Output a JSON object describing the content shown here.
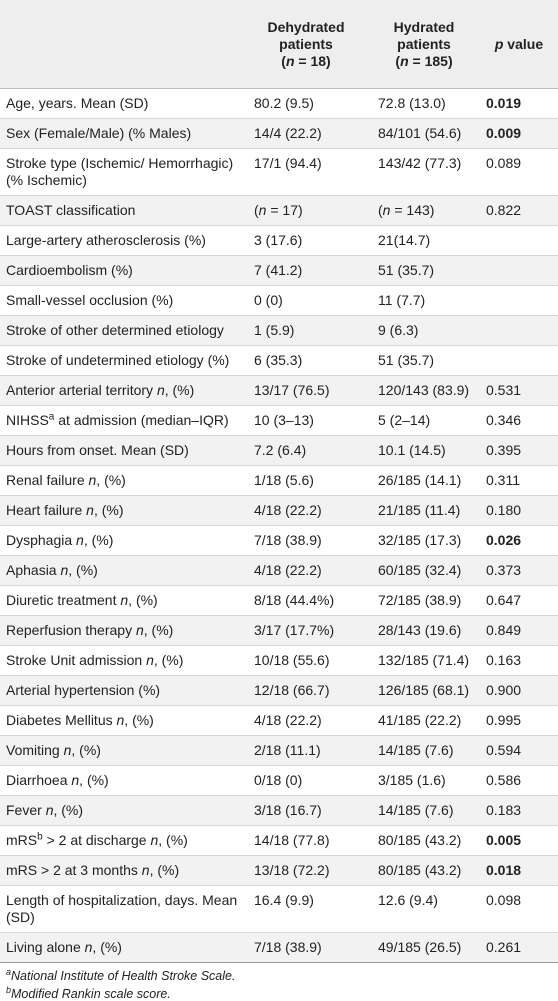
{
  "header": {
    "col1": "",
    "col2_line1": "Dehydrated",
    "col2_line2": "patients",
    "col2_n": "(n = 18)",
    "col3_line1": "Hydrated",
    "col3_line2": "patients",
    "col3_n": "(n = 185)",
    "col4": "p value"
  },
  "rows": [
    {
      "label": "Age, years. Mean (SD)",
      "dehydrated": "80.2 (9.5)",
      "hydrated": "72.8 (13.0)",
      "p": "0.019",
      "bold": true
    },
    {
      "label": "Sex (Female/Male) (% Males)",
      "dehydrated": "14/4 (22.2)",
      "hydrated": "84/101 (54.6)",
      "p": "0.009",
      "bold": true
    },
    {
      "label": "Stroke type (Ischemic/ Hemorrhagic) (% Ischemic)",
      "dehydrated": "17/1 (94.4)",
      "hydrated": "143/42 (77.3)",
      "p": "0.089",
      "bold": false
    },
    {
      "label": "TOAST classification",
      "dehydrated": "(n = 17)",
      "hydrated": "(n = 143)",
      "p": "0.822",
      "bold": false
    },
    {
      "label": "Large-artery atherosclerosis (%)",
      "dehydrated": "3 (17.6)",
      "hydrated": "21(14.7)",
      "p": "",
      "bold": false
    },
    {
      "label": "Cardioembolism (%)",
      "dehydrated": "7 (41.2)",
      "hydrated": "51 (35.7)",
      "p": "",
      "bold": false
    },
    {
      "label": "Small-vessel occlusion (%)",
      "dehydrated": "0 (0)",
      "hydrated": "11 (7.7)",
      "p": "",
      "bold": false
    },
    {
      "label": "Stroke of other determined etiology",
      "dehydrated": "1 (5.9)",
      "hydrated": "9 (6.3)",
      "p": "",
      "bold": false
    },
    {
      "label": "Stroke of undetermined etiology (%)",
      "dehydrated": "6 (35.3)",
      "hydrated": "51 (35.7)",
      "p": "",
      "bold": false
    },
    {
      "label": "Anterior arterial territory n, (%)",
      "dehydrated": "13/17 (76.5)",
      "hydrated": "120/143 (83.9)",
      "p": "0.531",
      "bold": false
    },
    {
      "label": "NIHSS at admission (median–IQR)",
      "dehydrated": "10 (3–13)",
      "hydrated": "5 (2–14)",
      "p": "0.346",
      "bold": false
    },
    {
      "label": "Hours from onset. Mean (SD)",
      "dehydrated": "7.2 (6.4)",
      "hydrated": "10.1 (14.5)",
      "p": "0.395",
      "bold": false
    },
    {
      "label": "Renal failure n, (%)",
      "dehydrated": "1/18 (5.6)",
      "hydrated": "26/185 (14.1)",
      "p": "0.311",
      "bold": false
    },
    {
      "label": "Heart failure n, (%)",
      "dehydrated": "4/18 (22.2)",
      "hydrated": "21/185 (11.4)",
      "p": "0.180",
      "bold": false
    },
    {
      "label": "Dysphagia n, (%)",
      "dehydrated": "7/18 (38.9)",
      "hydrated": "32/185 (17.3)",
      "p": "0.026",
      "bold": true
    },
    {
      "label": "Aphasia n, (%)",
      "dehydrated": "4/18 (22.2)",
      "hydrated": "60/185 (32.4)",
      "p": "0.373",
      "bold": false
    },
    {
      "label": "Diuretic treatment n, (%)",
      "dehydrated": "8/18 (44.4%)",
      "hydrated": "72/185 (38.9)",
      "p": "0.647",
      "bold": false
    },
    {
      "label": "Reperfusion therapy n, (%)",
      "dehydrated": "3/17 (17.7%)",
      "hydrated": "28/143 (19.6)",
      "p": "0.849",
      "bold": false
    },
    {
      "label": "Stroke Unit admission n, (%)",
      "dehydrated": "10/18 (55.6)",
      "hydrated": "132/185 (71.4)",
      "p": "0.163",
      "bold": false
    },
    {
      "label": "Arterial hypertension (%)",
      "dehydrated": "12/18 (66.7)",
      "hydrated": "126/185 (68.1)",
      "p": "0.900",
      "bold": false
    },
    {
      "label": "Diabetes Mellitus n, (%)",
      "dehydrated": "4/18 (22.2)",
      "hydrated": "41/185 (22.2)",
      "p": "0.995",
      "bold": false
    },
    {
      "label": "Vomiting n, (%)",
      "dehydrated": "2/18 (11.1)",
      "hydrated": "14/185 (7.6)",
      "p": "0.594",
      "bold": false
    },
    {
      "label": "Diarrhoea n, (%)",
      "dehydrated": "0/18 (0)",
      "hydrated": "3/185 (1.6)",
      "p": "0.586",
      "bold": false
    },
    {
      "label": "Fever n, (%)",
      "dehydrated": "3/18 (16.7)",
      "hydrated": "14/185 (7.6)",
      "p": "0.183",
      "bold": false
    },
    {
      "label": "mRS > 2 at discharge n, (%)",
      "dehydrated": "14/18 (77.8)",
      "hydrated": "80/185 (43.2)",
      "p": "0.005",
      "bold": true
    },
    {
      "label": "mRS > 2 at 3 months n, (%)",
      "dehydrated": "13/18 (72.2)",
      "hydrated": "80/185 (43.2)",
      "p": "0.018",
      "bold": true
    },
    {
      "label": "Length of hospitalization, days. Mean (SD)",
      "dehydrated": "16.4 (9.9)",
      "hydrated": "12.6 (9.4)",
      "p": "0.098",
      "bold": false
    },
    {
      "label": "Living alone n, (%)",
      "dehydrated": "7/18 (38.9)",
      "hydrated": "49/185 (26.5)",
      "p": "0.261",
      "bold": false
    }
  ],
  "footnotes": {
    "a_mark": "a",
    "a_text": "National Institute of Health Stroke Scale.",
    "b_mark": "b",
    "b_text": "Modified Rankin scale score."
  }
}
